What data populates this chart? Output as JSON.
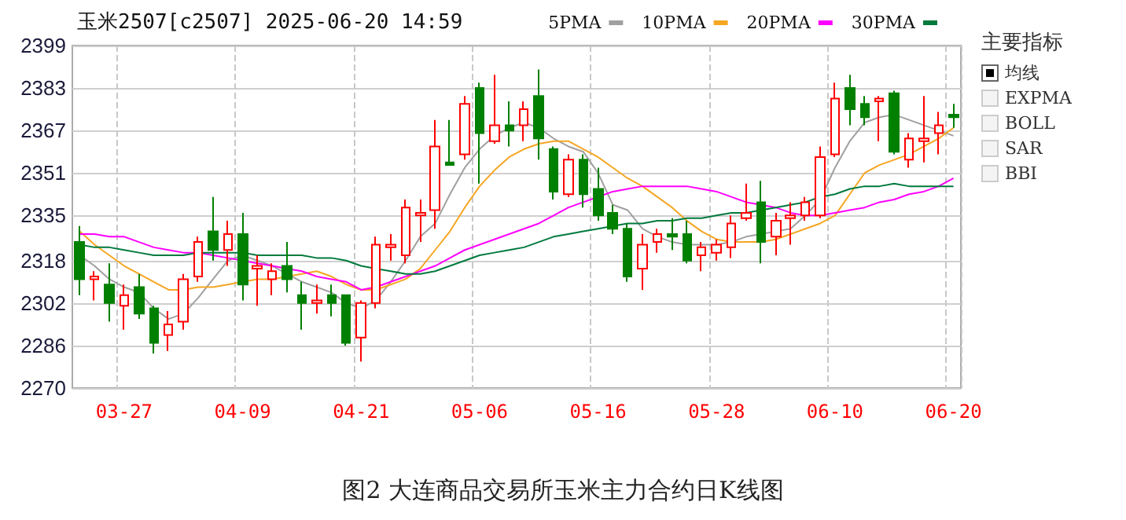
{
  "chart_data": {
    "type": "candlestick",
    "title": "玉米2507[c2507] 2025-06-20 14:59",
    "categories": [
      null,
      null,
      null,
      "03-27",
      null,
      null,
      null,
      null,
      null,
      null,
      null,
      "04-09",
      null,
      null,
      null,
      null,
      null,
      null,
      null,
      "04-21",
      null,
      null,
      null,
      null,
      null,
      null,
      null,
      "05-06",
      null,
      null,
      null,
      null,
      null,
      null,
      null,
      "05-16",
      null,
      null,
      null,
      null,
      null,
      null,
      null,
      "05-28",
      null,
      null,
      null,
      null,
      null,
      null,
      null,
      "06-10",
      null,
      null,
      null,
      null,
      null,
      null,
      null,
      "06-20"
    ],
    "ohlc": [
      [
        2325,
        2331,
        2305,
        2311
      ],
      [
        2311,
        2314,
        2303,
        2312
      ],
      [
        2309,
        2317,
        2295,
        2302
      ],
      [
        2301,
        2309,
        2292,
        2305
      ],
      [
        2308,
        2313,
        2296,
        2298
      ],
      [
        2300,
        2301,
        2283,
        2287
      ],
      [
        2290,
        2299,
        2284,
        2294
      ],
      [
        2295,
        2313,
        2292,
        2311
      ],
      [
        2312,
        2327,
        2310,
        2325
      ],
      [
        2329,
        2342,
        2318,
        2322
      ],
      [
        2322,
        2333,
        2316,
        2328
      ],
      [
        2328,
        2336,
        2303,
        2309
      ],
      [
        2315,
        2320,
        2301,
        2316
      ],
      [
        2311,
        2317,
        2305,
        2314
      ],
      [
        2316,
        2325,
        2306,
        2311
      ],
      [
        2305,
        2310,
        2292,
        2302
      ],
      [
        2302,
        2309,
        2298,
        2303
      ],
      [
        2305,
        2309,
        2297,
        2302
      ],
      [
        2305,
        2305,
        2286,
        2287
      ],
      [
        2289,
        2303,
        2280,
        2302
      ],
      [
        2302,
        2327,
        2300,
        2324
      ],
      [
        2323,
        2328,
        2318,
        2324
      ],
      [
        2320,
        2341,
        2317,
        2338
      ],
      [
        2335,
        2341,
        2325,
        2336
      ],
      [
        2337,
        2371,
        2330,
        2361
      ],
      [
        2355,
        2371,
        2354,
        2354
      ],
      [
        2358,
        2380,
        2356,
        2377
      ],
      [
        2383,
        2385,
        2347,
        2366
      ],
      [
        2363,
        2388,
        2362,
        2369
      ],
      [
        2369,
        2378,
        2361,
        2367
      ],
      [
        2369,
        2378,
        2363,
        2375
      ],
      [
        2380,
        2390,
        2356,
        2364
      ],
      [
        2360,
        2361,
        2341,
        2344
      ],
      [
        2343,
        2358,
        2342,
        2356
      ],
      [
        2356,
        2358,
        2338,
        2343
      ],
      [
        2345,
        2353,
        2333,
        2335
      ],
      [
        2336,
        2339,
        2328,
        2330
      ],
      [
        2330,
        2332,
        2310,
        2312
      ],
      [
        2315,
        2328,
        2307,
        2324
      ],
      [
        2325,
        2330,
        2321,
        2328
      ],
      [
        2328,
        2334,
        2322,
        2327
      ],
      [
        2328,
        2333,
        2317,
        2318
      ],
      [
        2320,
        2325,
        2314,
        2323
      ],
      [
        2321,
        2326,
        2318,
        2324
      ],
      [
        2323,
        2335,
        2319,
        2332
      ],
      [
        2334,
        2347,
        2333,
        2336
      ],
      [
        2340,
        2348,
        2317,
        2325
      ],
      [
        2327,
        2336,
        2320,
        2333
      ],
      [
        2334,
        2340,
        2324,
        2335
      ],
      [
        2335,
        2342,
        2333,
        2340
      ],
      [
        2335,
        2361,
        2334,
        2357
      ],
      [
        2358,
        2385,
        2357,
        2379
      ],
      [
        2383,
        2388,
        2369,
        2375
      ],
      [
        2377,
        2380,
        2369,
        2372
      ],
      [
        2378,
        2380,
        2363,
        2379
      ],
      [
        2381,
        2382,
        2358,
        2359
      ],
      [
        2356,
        2366,
        2353,
        2364
      ],
      [
        2363,
        2380,
        2355,
        2364
      ],
      [
        2366,
        2374,
        2358,
        2369
      ],
      [
        2373,
        2377,
        2368,
        2372
      ]
    ],
    "colors": [
      "#008000",
      "#ff0000",
      "#008000",
      "#ff0000",
      "#008000",
      "#008000",
      "#ff0000",
      "#ff0000",
      "#ff0000",
      "#008000",
      "#ff0000",
      "#008000",
      "#ff0000",
      "#ff0000",
      "#008000",
      "#008000",
      "#ff0000",
      "#008000",
      "#008000",
      "#ff0000",
      "#ff0000",
      "#ff0000",
      "#ff0000",
      "#ff0000",
      "#ff0000",
      "#008000",
      "#ff0000",
      "#008000",
      "#ff0000",
      "#008000",
      "#ff0000",
      "#008000",
      "#008000",
      "#ff0000",
      "#008000",
      "#008000",
      "#008000",
      "#008000",
      "#ff0000",
      "#ff0000",
      "#008000",
      "#008000",
      "#ff0000",
      "#ff0000",
      "#ff0000",
      "#ff0000",
      "#008000",
      "#ff0000",
      "#ff0000",
      "#ff0000",
      "#ff0000",
      "#ff0000",
      "#008000",
      "#008000",
      "#ff0000",
      "#008000",
      "#ff0000",
      "#ff0000",
      "#ff0000",
      "#008000"
    ],
    "series": [
      {
        "type": "line",
        "name": "5PMA",
        "color": "#a0a0a0",
        "values": [
          2320,
          2316,
          2311,
          2308,
          2306,
          2300,
          2296,
          2298,
          2304,
          2311,
          2318,
          2320,
          2318,
          2316,
          2313,
          2310,
          2308,
          2306,
          2302,
          2300,
          2303,
          2310,
          2318,
          2327,
          2332,
          2343,
          2353,
          2360,
          2365,
          2368,
          2370,
          2368,
          2364,
          2361,
          2359,
          2351,
          2339,
          2337,
          2330,
          2327,
          2325,
          2324,
          2324,
          2324,
          2325,
          2327,
          2328,
          2329,
          2330,
          2335,
          2341,
          2353,
          2363,
          2370,
          2372,
          2373,
          2371,
          2369,
          2367,
          2365
        ]
      },
      {
        "type": "line",
        "name": "10PMA",
        "color": "#f5a623",
        "values": [
          2329,
          2324,
          2320,
          2316,
          2313,
          2310,
          2307,
          2307,
          2308,
          2308,
          2309,
          2310,
          2311,
          2311,
          2312,
          2313,
          2314,
          2312,
          2309,
          2307,
          2307,
          2309,
          2311,
          2315,
          2322,
          2329,
          2338,
          2346,
          2352,
          2357,
          2360,
          2362,
          2363,
          2363,
          2360,
          2357,
          2353,
          2349,
          2346,
          2342,
          2338,
          2333,
          2329,
          2326,
          2325,
          2325,
          2325,
          2326,
          2328,
          2330,
          2332,
          2335,
          2343,
          2351,
          2354,
          2356,
          2358,
          2361,
          2364,
          2368
        ]
      },
      {
        "type": "line",
        "name": "20PMA",
        "color": "#ff00ff",
        "values": [
          2328,
          2328,
          2327,
          2327,
          2325,
          2323,
          2322,
          2321,
          2321,
          2320,
          2319,
          2318,
          2317,
          2316,
          2315,
          2314,
          2312,
          2311,
          2310,
          2307,
          2308,
          2310,
          2312,
          2314,
          2316,
          2319,
          2322,
          2324,
          2326,
          2328,
          2330,
          2332,
          2335,
          2338,
          2340,
          2342,
          2344,
          2345,
          2346,
          2346,
          2346,
          2346,
          2345,
          2344,
          2342,
          2340,
          2339,
          2338,
          2336,
          2335,
          2335,
          2336,
          2337,
          2338,
          2340,
          2341,
          2343,
          2344,
          2346,
          2349
        ]
      },
      {
        "type": "line",
        "name": "30PMA",
        "color": "#007a3d",
        "values": [
          2324,
          2323,
          2323,
          2322,
          2321,
          2320,
          2320,
          2320,
          2321,
          2321,
          2321,
          2321,
          2320,
          2320,
          2320,
          2320,
          2319,
          2319,
          2318,
          2316,
          2315,
          2314,
          2313,
          2313,
          2314,
          2316,
          2318,
          2320,
          2321,
          2322,
          2323,
          2325,
          2327,
          2328,
          2329,
          2330,
          2331,
          2332,
          2332,
          2333,
          2333,
          2334,
          2334,
          2335,
          2336,
          2336,
          2337,
          2338,
          2339,
          2340,
          2342,
          2343,
          2345,
          2346,
          2346,
          2347,
          2346,
          2346,
          2346,
          2346
        ]
      }
    ],
    "ylim": [
      2270,
      2399
    ],
    "yticks": [
      2270,
      2286,
      2302,
      2318,
      2335,
      2351,
      2367,
      2383,
      2399
    ],
    "grid": true,
    "legend": "top",
    "annotations": [
      "图2 大连商品交易所玉米主力合约日K线图",
      "主要指标",
      "均线",
      "EXPMA",
      "BOLL",
      "SAR",
      "BBI"
    ]
  }
}
